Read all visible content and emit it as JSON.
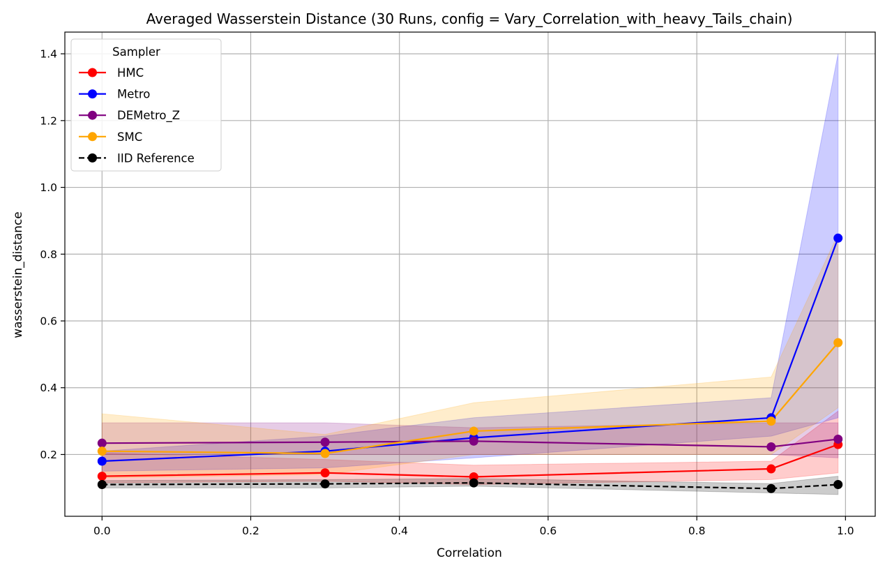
{
  "chart_data": {
    "type": "line",
    "title": "Averaged Wasserstein Distance (30 Runs, config = Vary_Correlation_with_heavy_Tails_chain)",
    "xlabel": "Correlation",
    "ylabel": "wasserstein_distance",
    "xlim": [
      -0.05,
      1.04
    ],
    "ylim": [
      0.015,
      1.465
    ],
    "xticks": [
      0.0,
      0.2,
      0.4,
      0.6,
      0.8,
      1.0
    ],
    "xtick_labels": [
      "0.0",
      "0.2",
      "0.4",
      "0.6",
      "0.8",
      "1.0"
    ],
    "yticks": [
      0.2,
      0.4,
      0.6,
      0.8,
      1.0,
      1.2,
      1.4
    ],
    "ytick_labels": [
      "0.2",
      "0.4",
      "0.6",
      "0.8",
      "1.0",
      "1.2",
      "1.4"
    ],
    "grid": true,
    "legend": {
      "title": "Sampler",
      "position": "top-left"
    },
    "x": [
      0.0,
      0.3,
      0.5,
      0.9,
      0.99
    ],
    "series": [
      {
        "name": "HMC",
        "color": "#ff0000",
        "dashed": false,
        "values": [
          0.135,
          0.145,
          0.133,
          0.157,
          0.23
        ],
        "band_lower": [
          0.115,
          0.12,
          0.11,
          0.125,
          0.145
        ],
        "band_upper": [
          0.205,
          0.185,
          0.168,
          0.18,
          0.33
        ]
      },
      {
        "name": "Metro",
        "color": "#0000ff",
        "dashed": false,
        "values": [
          0.18,
          0.21,
          0.25,
          0.31,
          0.848
        ],
        "band_lower": [
          0.15,
          0.16,
          0.19,
          0.255,
          0.31
        ],
        "band_upper": [
          0.21,
          0.255,
          0.31,
          0.37,
          1.4
        ]
      },
      {
        "name": "DEMetro_Z",
        "color": "#800080",
        "dashed": false,
        "values": [
          0.234,
          0.237,
          0.24,
          0.223,
          0.246
        ],
        "band_lower": [
          0.2,
          0.2,
          0.2,
          0.2,
          0.19
        ],
        "band_upper": [
          0.295,
          0.295,
          0.28,
          0.295,
          0.295
        ]
      },
      {
        "name": "SMC",
        "color": "#ffa500",
        "dashed": false,
        "values": [
          0.21,
          0.203,
          0.27,
          0.3,
          0.535
        ],
        "band_lower": [
          0.13,
          0.14,
          0.2,
          0.2,
          0.34
        ],
        "band_upper": [
          0.322,
          0.26,
          0.355,
          0.432,
          0.86
        ]
      },
      {
        "name": "IID Reference",
        "color": "#000000",
        "dashed": true,
        "values": [
          0.11,
          0.112,
          0.115,
          0.098,
          0.11
        ],
        "band_lower": [
          0.1,
          0.1,
          0.105,
          0.085,
          0.08
        ],
        "band_upper": [
          0.122,
          0.125,
          0.128,
          0.113,
          0.135
        ]
      }
    ]
  }
}
